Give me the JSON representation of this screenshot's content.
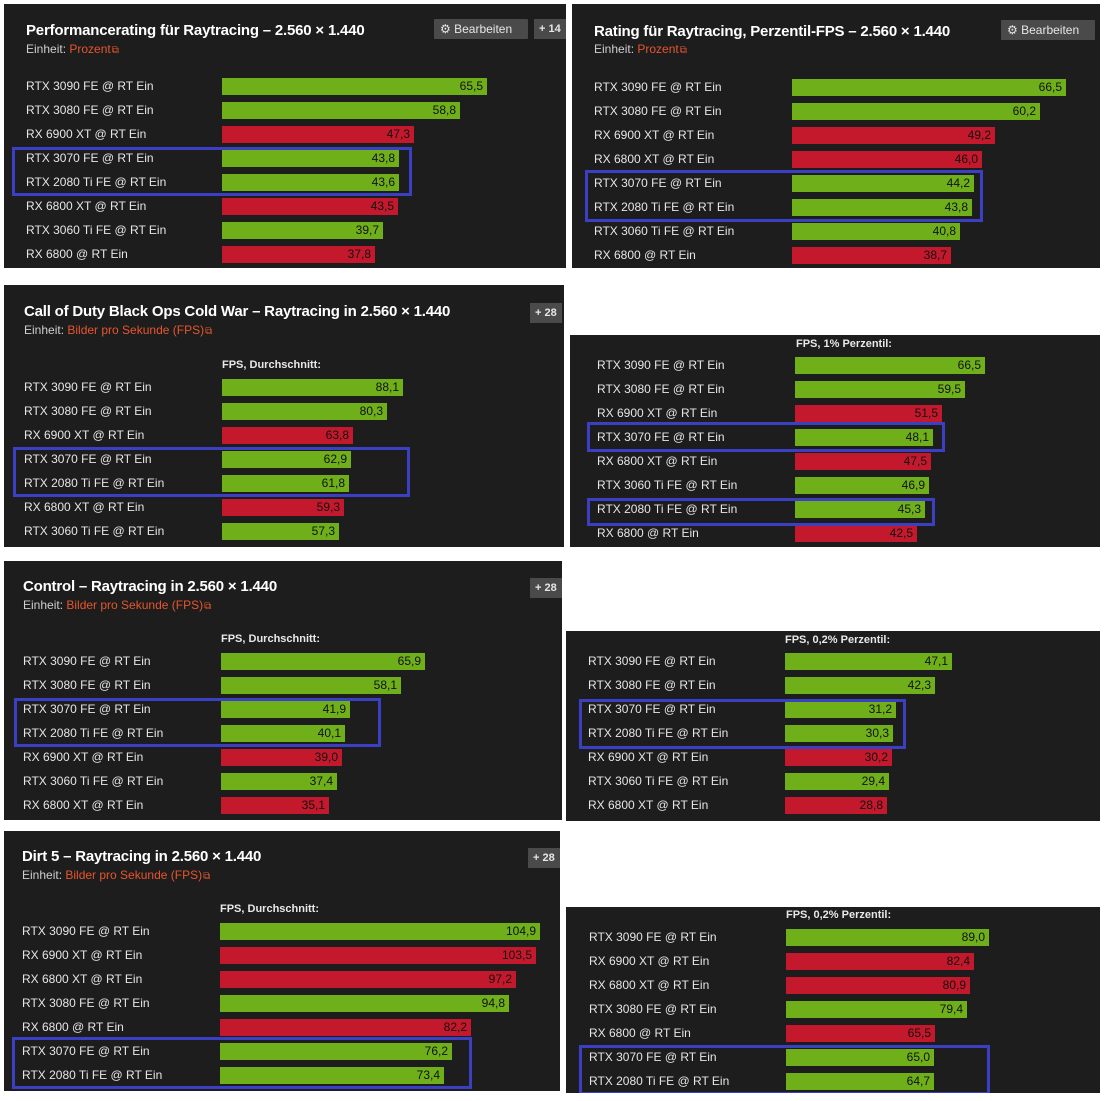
{
  "colors": {
    "nvidia": "#6faf1a",
    "amd": "#c4192d",
    "highlight": "#3b3fc2",
    "link": "#e8552d"
  },
  "ui": {
    "edit_label": "Bearbeiten",
    "unit_prefix": "Einheit:",
    "link_icon": "⧉",
    "gear_icon": "⚙"
  },
  "chart_data": [
    {
      "type": "bar",
      "title": "Performancerating für Raytracing – 2.560 × 1.440",
      "unit": "Prozent",
      "subtitle": "",
      "button": "Bearbeiten",
      "plus": "+ 14",
      "categories": [
        "RTX 3090 FE @ RT Ein",
        "RTX 3080 FE @ RT Ein",
        "RX 6900 XT @ RT Ein",
        "RTX 3070 FE @ RT Ein",
        "RTX 2080 Ti FE @ RT Ein",
        "RX 6800 XT @ RT Ein",
        "RTX 3060 Ti FE @ RT Ein",
        "RX 6800 @ RT Ein"
      ],
      "values": [
        65.5,
        58.8,
        47.3,
        43.8,
        43.6,
        43.5,
        39.7,
        37.8
      ],
      "value_labels": [
        "65,5",
        "58,8",
        "47,3",
        "43,8",
        "43,6",
        "43,5",
        "39,7",
        "37,8"
      ],
      "vendor": [
        "nvidia",
        "nvidia",
        "amd",
        "nvidia",
        "nvidia",
        "amd",
        "nvidia",
        "amd"
      ],
      "highlighted": [
        3,
        4
      ]
    },
    {
      "type": "bar",
      "title": "Rating für Raytracing, Perzentil-FPS – 2.560 × 1.440",
      "unit": "Prozent",
      "subtitle": "",
      "button": "Bearbeiten",
      "plus": "",
      "categories": [
        "RTX 3090 FE @ RT Ein",
        "RTX 3080 FE @ RT Ein",
        "RX 6900 XT @ RT Ein",
        "RX 6800 XT @ RT Ein",
        "RTX 3070 FE @ RT Ein",
        "RTX 2080 Ti FE @ RT Ein",
        "RTX 3060 Ti FE @ RT Ein",
        "RX 6800 @ RT Ein"
      ],
      "values": [
        66.5,
        60.2,
        49.2,
        46.0,
        44.2,
        43.8,
        40.8,
        38.7
      ],
      "value_labels": [
        "66,5",
        "60,2",
        "49,2",
        "46,0",
        "44,2",
        "43,8",
        "40,8",
        "38,7"
      ],
      "vendor": [
        "nvidia",
        "nvidia",
        "amd",
        "amd",
        "nvidia",
        "nvidia",
        "nvidia",
        "amd"
      ],
      "highlighted": [
        4,
        5
      ]
    },
    {
      "type": "bar",
      "title": "Call of Duty Black Ops Cold War – Raytracing in 2.560 × 1.440",
      "unit": "Bilder pro Sekunde (FPS)",
      "subtitle": "FPS, Durchschnitt:",
      "button": "",
      "plus": "+ 28",
      "categories": [
        "RTX 3090 FE @ RT Ein",
        "RTX 3080 FE @ RT Ein",
        "RX 6900 XT @ RT Ein",
        "RTX 3070 FE @ RT Ein",
        "RTX 2080 Ti FE @ RT Ein",
        "RX 6800 XT @ RT Ein",
        "RTX 3060 Ti FE @ RT Ein"
      ],
      "values": [
        88.1,
        80.3,
        63.8,
        62.9,
        61.8,
        59.3,
        57.3
      ],
      "value_labels": [
        "88,1",
        "80,3",
        "63,8",
        "62,9",
        "61,8",
        "59,3",
        "57,3"
      ],
      "vendor": [
        "nvidia",
        "nvidia",
        "amd",
        "nvidia",
        "nvidia",
        "amd",
        "nvidia"
      ],
      "highlighted": [
        3,
        4
      ]
    },
    {
      "type": "bar",
      "title": "",
      "unit": "",
      "subtitle": "FPS, 1% Perzentil:",
      "button": "",
      "plus": "",
      "categories": [
        "RTX 3090 FE @ RT Ein",
        "RTX 3080 FE @ RT Ein",
        "RX 6900 XT @ RT Ein",
        "RTX 3070 FE @ RT Ein",
        "RX 6800 XT @ RT Ein",
        "RTX 3060 Ti FE @ RT Ein",
        "RTX 2080 Ti FE @ RT Ein",
        "RX 6800 @ RT Ein"
      ],
      "values": [
        66.5,
        59.5,
        51.5,
        48.1,
        47.5,
        46.9,
        45.3,
        42.5
      ],
      "value_labels": [
        "66,5",
        "59,5",
        "51,5",
        "48,1",
        "47,5",
        "46,9",
        "45,3",
        "42,5"
      ],
      "vendor": [
        "nvidia",
        "nvidia",
        "amd",
        "nvidia",
        "amd",
        "nvidia",
        "nvidia",
        "amd"
      ],
      "highlighted": [
        3,
        6
      ]
    },
    {
      "type": "bar",
      "title": "Control – Raytracing in 2.560 × 1.440",
      "unit": "Bilder pro Sekunde (FPS)",
      "subtitle": "FPS, Durchschnitt:",
      "button": "",
      "plus": "+ 28",
      "categories": [
        "RTX 3090 FE @ RT Ein",
        "RTX 3080 FE @ RT Ein",
        "RTX 3070 FE @ RT Ein",
        "RTX 2080 Ti FE @ RT Ein",
        "RX 6900 XT @ RT Ein",
        "RTX 3060 Ti FE @ RT Ein",
        "RX 6800 XT @ RT Ein"
      ],
      "values": [
        65.9,
        58.1,
        41.9,
        40.1,
        39.0,
        37.4,
        35.1
      ],
      "value_labels": [
        "65,9",
        "58,1",
        "41,9",
        "40,1",
        "39,0",
        "37,4",
        "35,1"
      ],
      "vendor": [
        "nvidia",
        "nvidia",
        "nvidia",
        "nvidia",
        "amd",
        "nvidia",
        "amd"
      ],
      "highlighted": [
        2,
        3
      ]
    },
    {
      "type": "bar",
      "title": "",
      "unit": "",
      "subtitle": "FPS, 0,2% Perzentil:",
      "button": "",
      "plus": "",
      "categories": [
        "RTX 3090 FE @ RT Ein",
        "RTX 3080 FE @ RT Ein",
        "RTX 3070 FE @ RT Ein",
        "RTX 2080 Ti FE @ RT Ein",
        "RX 6900 XT @ RT Ein",
        "RTX 3060 Ti FE @ RT Ein",
        "RX 6800 XT @ RT Ein"
      ],
      "values": [
        47.1,
        42.3,
        31.2,
        30.3,
        30.2,
        29.4,
        28.8
      ],
      "value_labels": [
        "47,1",
        "42,3",
        "31,2",
        "30,3",
        "30,2",
        "29,4",
        "28,8"
      ],
      "vendor": [
        "nvidia",
        "nvidia",
        "nvidia",
        "nvidia",
        "amd",
        "nvidia",
        "amd"
      ],
      "highlighted": [
        2,
        3
      ]
    },
    {
      "type": "bar",
      "title": "Dirt 5 – Raytracing in 2.560 × 1.440",
      "unit": "Bilder pro Sekunde (FPS)",
      "subtitle": "FPS, Durchschnitt:",
      "button": "",
      "plus": "+ 28",
      "categories": [
        "RTX 3090 FE @ RT Ein",
        "RX 6900 XT @ RT Ein",
        "RX 6800 XT @ RT Ein",
        "RTX 3080 FE @ RT Ein",
        "RX 6800 @ RT Ein",
        "RTX 3070 FE @ RT Ein",
        "RTX 2080 Ti FE @ RT Ein"
      ],
      "values": [
        104.9,
        103.5,
        97.2,
        94.8,
        82.2,
        76.2,
        73.4
      ],
      "value_labels": [
        "104,9",
        "103,5",
        "97,2",
        "94,8",
        "82,2",
        "76,2",
        "73,4"
      ],
      "vendor": [
        "nvidia",
        "amd",
        "amd",
        "nvidia",
        "amd",
        "nvidia",
        "nvidia"
      ],
      "highlighted": [
        5,
        6
      ]
    },
    {
      "type": "bar",
      "title": "",
      "unit": "",
      "subtitle": "FPS, 0,2% Perzentil:",
      "button": "",
      "plus": "",
      "categories": [
        "RTX 3090 FE @ RT Ein",
        "RX 6900 XT @ RT Ein",
        "RX 6800 XT @ RT Ein",
        "RTX 3080 FE @ RT Ein",
        "RX 6800 @ RT Ein",
        "RTX 3070 FE @ RT Ein",
        "RTX 2080 Ti FE @ RT Ein"
      ],
      "values": [
        89.0,
        82.4,
        80.9,
        79.4,
        65.5,
        65.0,
        64.7
      ],
      "value_labels": [
        "89,0",
        "82,4",
        "80,9",
        "79,4",
        "65,5",
        "65,0",
        "64,7"
      ],
      "vendor": [
        "nvidia",
        "amd",
        "amd",
        "nvidia",
        "amd",
        "nvidia",
        "nvidia"
      ],
      "highlighted": [
        5,
        6
      ]
    }
  ]
}
